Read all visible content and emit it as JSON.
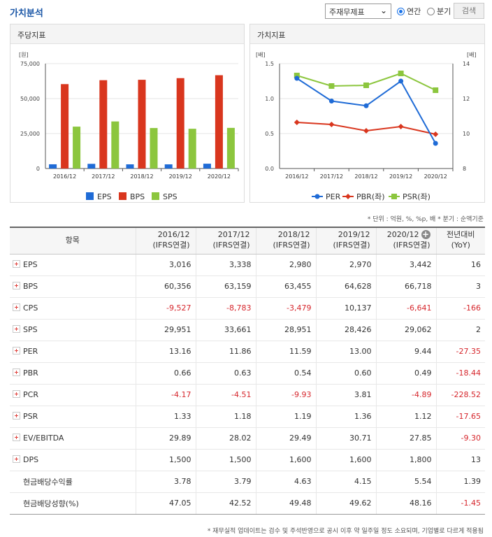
{
  "header": {
    "title": "가치분석",
    "select_value": "주재무제표",
    "radio_annual": "연간",
    "radio_quarter": "분기",
    "search_label": "검색"
  },
  "panels": {
    "left_title": "주당지표",
    "right_title": "가치지표"
  },
  "chart_data": [
    {
      "type": "bar",
      "title": "주당지표",
      "ylabel": "[원]",
      "ylim": [
        0,
        75000
      ],
      "yticks": [
        "0",
        "25,000",
        "50,000",
        "75,000"
      ],
      "categories": [
        "2016/12",
        "2017/12",
        "2018/12",
        "2019/12",
        "2020/12"
      ],
      "series": [
        {
          "name": "EPS",
          "color": "#1f6bd6",
          "values": [
            3016,
            3338,
            2980,
            2970,
            3442
          ]
        },
        {
          "name": "BPS",
          "color": "#d9361e",
          "values": [
            60356,
            63159,
            63455,
            64628,
            66718
          ]
        },
        {
          "name": "SPS",
          "color": "#8cc63e",
          "values": [
            29951,
            33661,
            28951,
            28426,
            29062
          ]
        }
      ],
      "legend": "bottom"
    },
    {
      "type": "line",
      "title": "가치지표",
      "ylabel_left": "[배]",
      "ylabel_right": "[배]",
      "ylim_left": [
        0,
        1.5
      ],
      "ylim_right": [
        8,
        14
      ],
      "yticks_left": [
        "0.0",
        "0.5",
        "1.0",
        "1.5"
      ],
      "yticks_right": [
        "8",
        "10",
        "12",
        "14"
      ],
      "categories": [
        "2016/12",
        "2017/12",
        "2018/12",
        "2019/12",
        "2020/12"
      ],
      "series": [
        {
          "name": "PER",
          "axis": "right",
          "color": "#1f6bd6",
          "marker": "circle",
          "values": [
            13.16,
            11.86,
            11.59,
            13.0,
            9.44
          ]
        },
        {
          "name": "PBR(좌)",
          "axis": "left",
          "color": "#d9361e",
          "marker": "diamond",
          "values": [
            0.66,
            0.63,
            0.54,
            0.6,
            0.49
          ]
        },
        {
          "name": "PSR(좌)",
          "axis": "left",
          "color": "#8cc63e",
          "marker": "square",
          "values": [
            1.33,
            1.18,
            1.19,
            1.36,
            1.12
          ]
        }
      ],
      "legend": "bottom"
    }
  ],
  "notes": {
    "unit": "* 단위 : 억원, %, %p, 배   * 분기 : 순액기준",
    "footer": "* 재무실적 업데이트는 검수 및 주석반영으로 공시 이후 약 일주일 정도 소요되며, 기업별로 다르게 적용됨"
  },
  "table": {
    "headers": [
      {
        "line1": "항목",
        "line2": ""
      },
      {
        "line1": "2016/12",
        "line2": "(IFRS연결)"
      },
      {
        "line1": "2017/12",
        "line2": "(IFRS연결)"
      },
      {
        "line1": "2018/12",
        "line2": "(IFRS연결)"
      },
      {
        "line1": "2019/12",
        "line2": "(IFRS연결)"
      },
      {
        "line1": "2020/12",
        "line2": "(IFRS연결)"
      },
      {
        "line1": "전년대비",
        "line2": "(YoY)"
      }
    ],
    "rows": [
      {
        "label": "EPS",
        "expandable": true,
        "values": [
          "3,016",
          "3,338",
          "2,980",
          "2,970",
          "3,442",
          "16"
        ]
      },
      {
        "label": "BPS",
        "expandable": true,
        "values": [
          "60,356",
          "63,159",
          "63,455",
          "64,628",
          "66,718",
          "3"
        ]
      },
      {
        "label": "CPS",
        "expandable": true,
        "values": [
          "-9,527",
          "-8,783",
          "-3,479",
          "10,137",
          "-6,641",
          "-166"
        ]
      },
      {
        "label": "SPS",
        "expandable": true,
        "values": [
          "29,951",
          "33,661",
          "28,951",
          "28,426",
          "29,062",
          "2"
        ]
      },
      {
        "label": "PER",
        "expandable": true,
        "values": [
          "13.16",
          "11.86",
          "11.59",
          "13.00",
          "9.44",
          "-27.35"
        ]
      },
      {
        "label": "PBR",
        "expandable": true,
        "values": [
          "0.66",
          "0.63",
          "0.54",
          "0.60",
          "0.49",
          "-18.44"
        ]
      },
      {
        "label": "PCR",
        "expandable": true,
        "values": [
          "-4.17",
          "-4.51",
          "-9.93",
          "3.81",
          "-4.89",
          "-228.52"
        ]
      },
      {
        "label": "PSR",
        "expandable": true,
        "values": [
          "1.33",
          "1.18",
          "1.19",
          "1.36",
          "1.12",
          "-17.65"
        ]
      },
      {
        "label": "EV/EBITDA",
        "expandable": true,
        "values": [
          "29.89",
          "28.02",
          "29.49",
          "30.71",
          "27.85",
          "-9.30"
        ]
      },
      {
        "label": "DPS",
        "expandable": true,
        "values": [
          "1,500",
          "1,500",
          "1,600",
          "1,600",
          "1,800",
          "13"
        ]
      },
      {
        "label": "현금배당수익률",
        "expandable": false,
        "values": [
          "3.78",
          "3.79",
          "4.63",
          "4.15",
          "5.54",
          "1.39"
        ]
      },
      {
        "label": "현금배당성향(%)",
        "expandable": false,
        "values": [
          "47.05",
          "42.52",
          "49.48",
          "49.62",
          "48.16",
          "-1.45"
        ]
      }
    ]
  }
}
